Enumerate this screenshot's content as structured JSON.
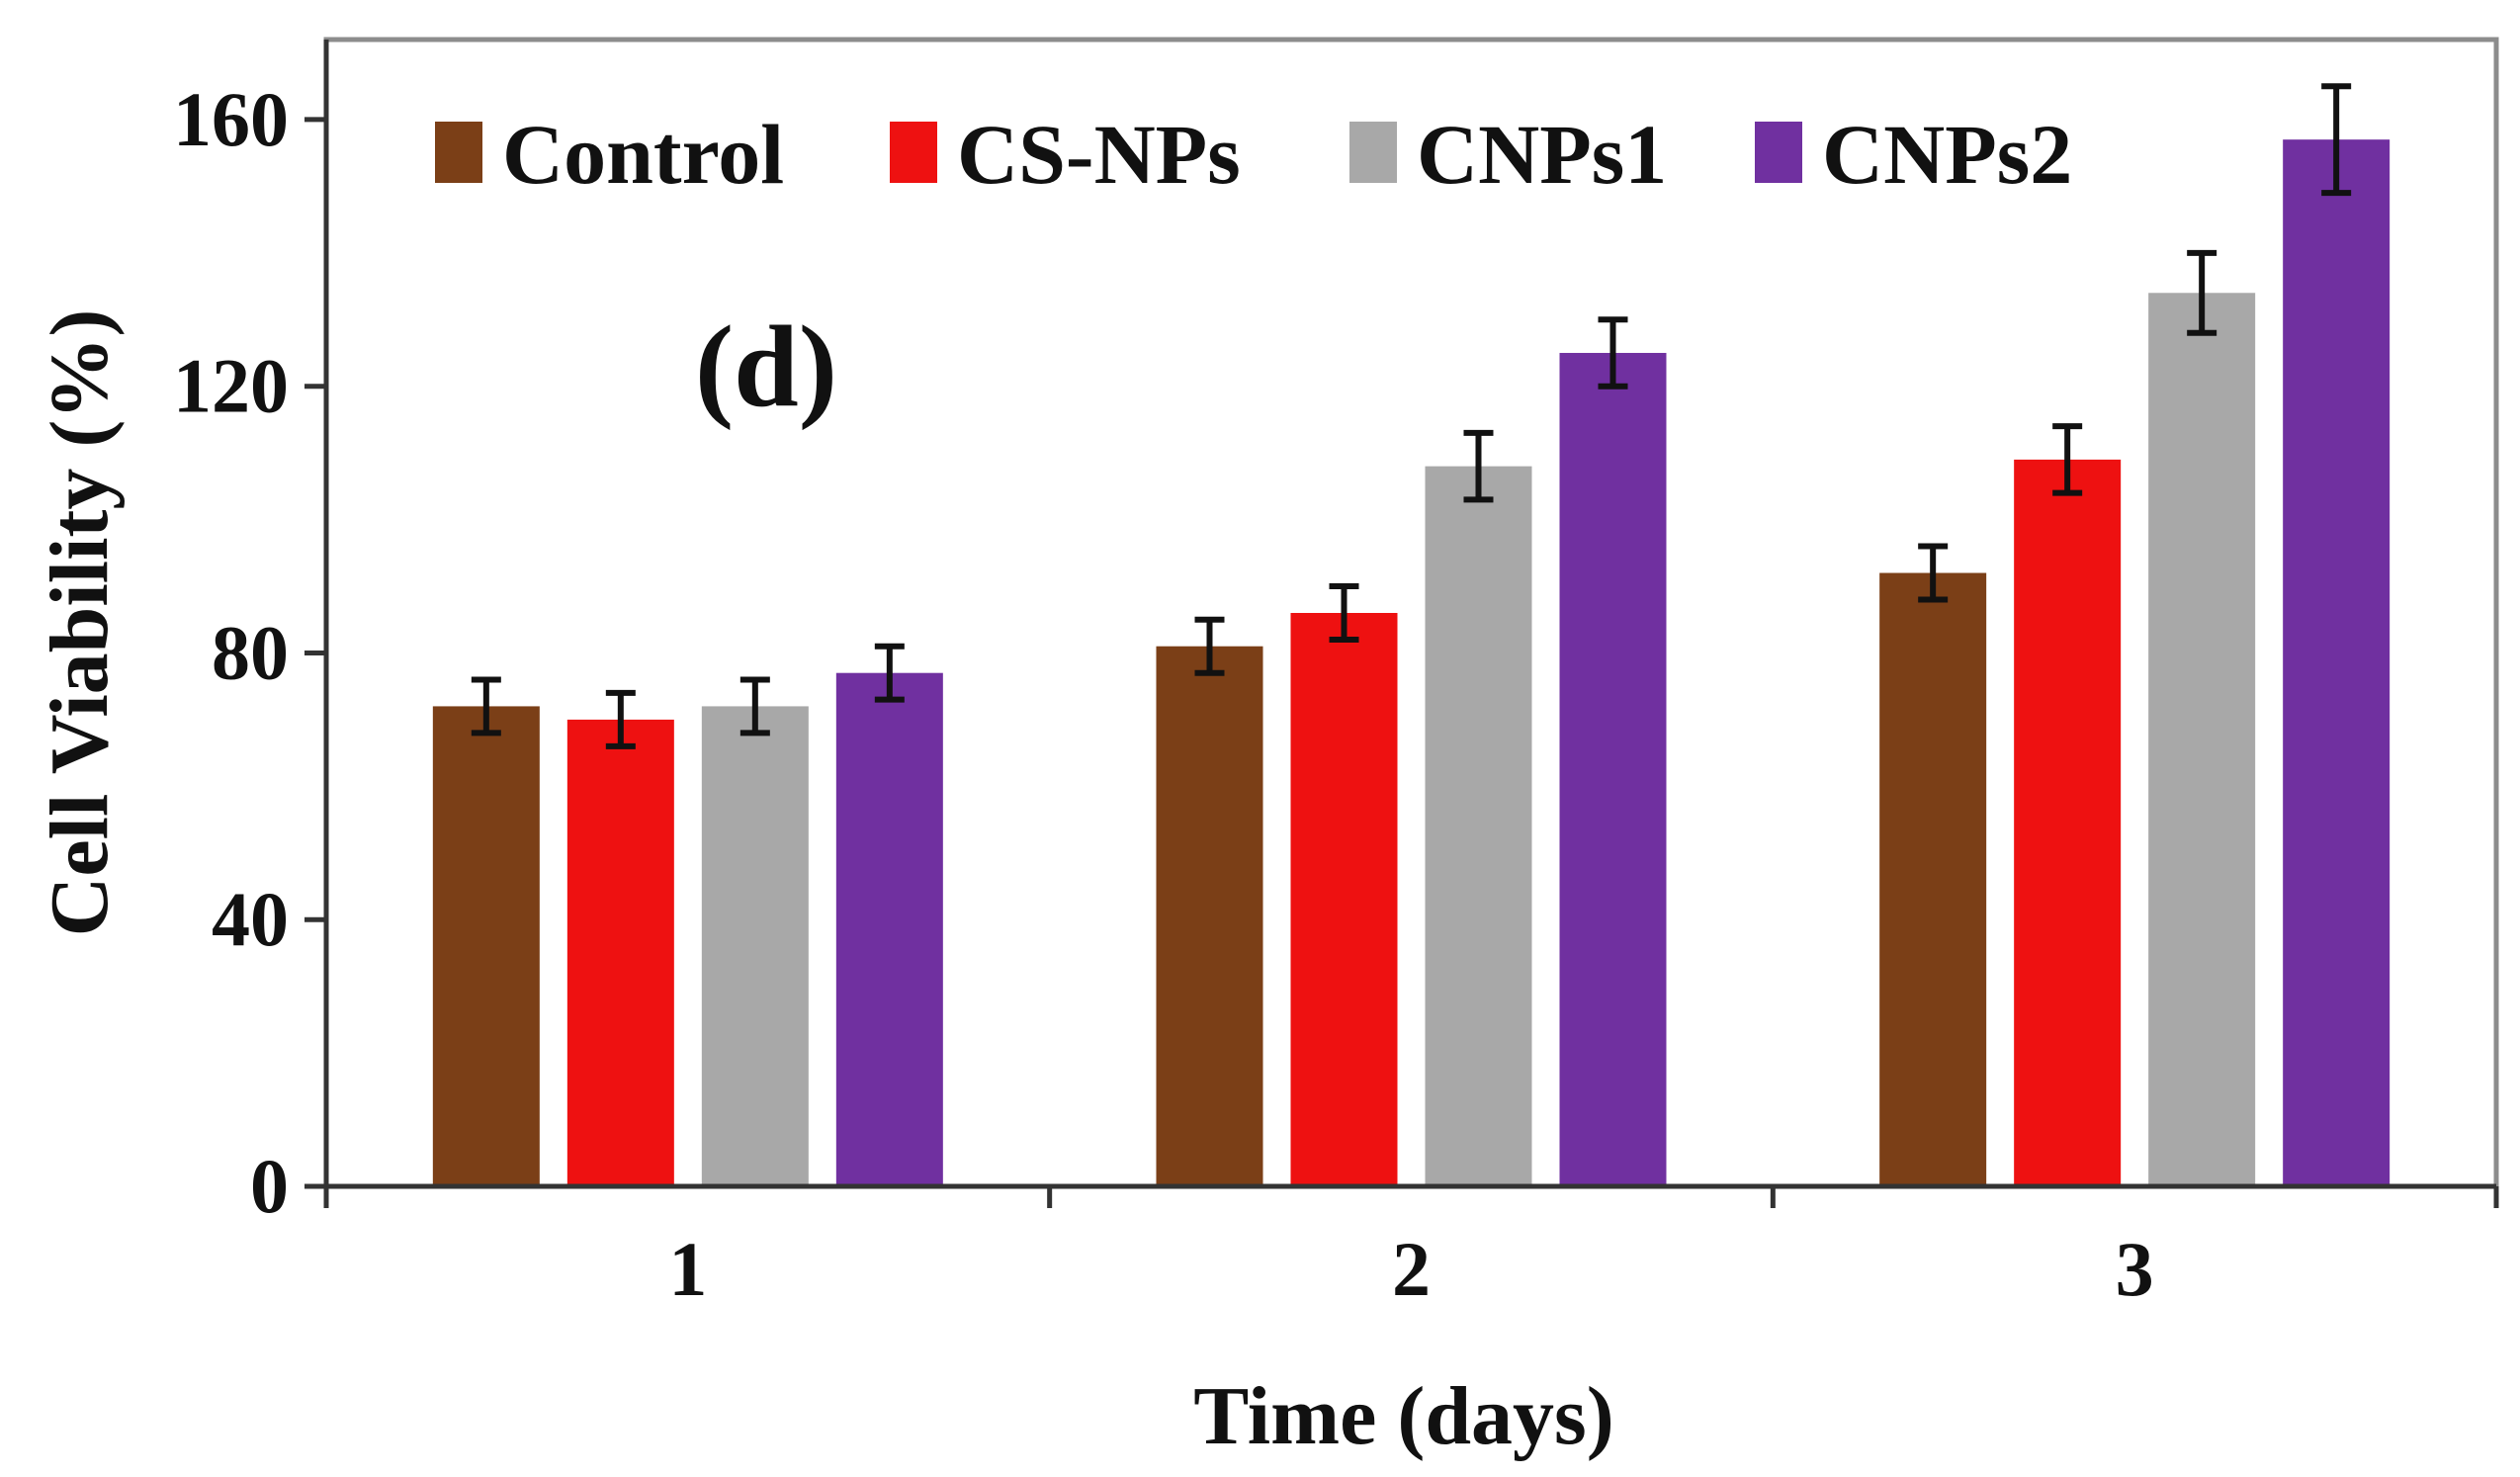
{
  "chart_data": {
    "type": "bar",
    "title": "",
    "panel_label": "(d)",
    "xlabel": "Time (days)",
    "ylabel": "Cell Viability  (%)",
    "categories": [
      "1",
      "2",
      "3"
    ],
    "ylim": [
      0,
      172
    ],
    "yticks": [
      0,
      40,
      80,
      120,
      160
    ],
    "grid": false,
    "legend_position": "top",
    "series": [
      {
        "name": "Control",
        "color": "#7b3f17",
        "values": [
          72,
          81,
          92
        ],
        "errors": [
          4,
          4,
          4
        ]
      },
      {
        "name": "CS-NPs",
        "color": "#ee1111",
        "values": [
          70,
          86,
          109
        ],
        "errors": [
          4,
          4,
          5
        ]
      },
      {
        "name": "CNPs1",
        "color": "#a8a8a8",
        "values": [
          72,
          108,
          134
        ],
        "errors": [
          4,
          5,
          6
        ]
      },
      {
        "name": "CNPs2",
        "color": "#7030a0",
        "values": [
          77,
          125,
          157
        ],
        "errors": [
          4,
          5,
          8
        ]
      }
    ]
  }
}
